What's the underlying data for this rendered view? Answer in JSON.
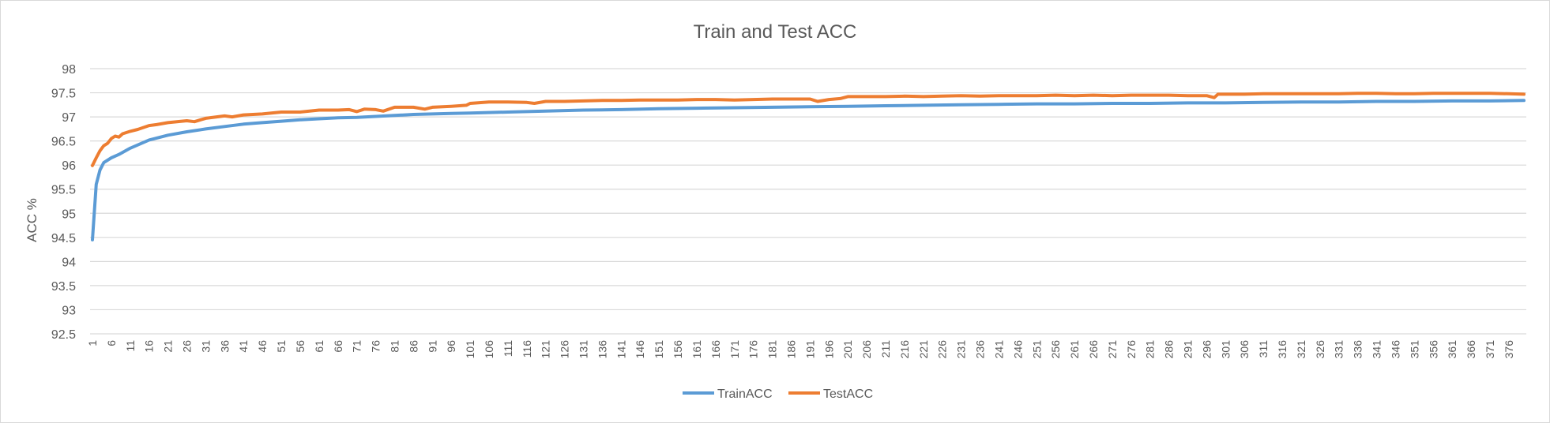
{
  "chart_data": {
    "type": "line",
    "title": "Train and Test ACC",
    "xlabel": "",
    "ylabel": "ACC %",
    "ylim": [
      92.5,
      98
    ],
    "yticks": [
      "92.5",
      "93",
      "93.5",
      "94",
      "94.5",
      "95",
      "95.5",
      "96",
      "96.5",
      "97",
      "97.5",
      "98"
    ],
    "xlim": [
      1,
      380
    ],
    "xticks": [
      "1",
      "6",
      "11",
      "16",
      "21",
      "26",
      "31",
      "36",
      "41",
      "46",
      "51",
      "56",
      "61",
      "66",
      "71",
      "76",
      "81",
      "86",
      "91",
      "96",
      "101",
      "106",
      "111",
      "116",
      "121",
      "126",
      "131",
      "136",
      "141",
      "146",
      "151",
      "156",
      "161",
      "166",
      "171",
      "176",
      "181",
      "186",
      "191",
      "196",
      "201",
      "206",
      "211",
      "216",
      "221",
      "226",
      "231",
      "236",
      "241",
      "246",
      "251",
      "256",
      "261",
      "266",
      "271",
      "276",
      "281",
      "286",
      "291",
      "296",
      "301",
      "306",
      "311",
      "316",
      "321",
      "326",
      "331",
      "336",
      "341",
      "346",
      "351",
      "356",
      "361",
      "366",
      "371",
      "376"
    ],
    "grid": true,
    "legend_position": "bottom",
    "series": [
      {
        "name": "TrainACC",
        "color": "#5b9bd5",
        "x": [
          1,
          2,
          3,
          4,
          6,
          8,
          11,
          16,
          21,
          26,
          31,
          36,
          41,
          46,
          51,
          56,
          61,
          66,
          71,
          76,
          81,
          86,
          91,
          96,
          101,
          111,
          121,
          131,
          141,
          151,
          161,
          171,
          181,
          191,
          201,
          211,
          221,
          231,
          241,
          251,
          261,
          271,
          281,
          291,
          301,
          311,
          321,
          331,
          341,
          351,
          361,
          371,
          380
        ],
        "values": [
          94.45,
          95.6,
          95.9,
          96.05,
          96.15,
          96.22,
          96.35,
          96.52,
          96.62,
          96.69,
          96.75,
          96.8,
          96.85,
          96.88,
          96.91,
          96.94,
          96.96,
          96.98,
          96.99,
          97.01,
          97.03,
          97.05,
          97.06,
          97.07,
          97.08,
          97.1,
          97.12,
          97.14,
          97.15,
          97.17,
          97.18,
          97.19,
          97.2,
          97.21,
          97.22,
          97.23,
          97.24,
          97.25,
          97.26,
          97.27,
          97.27,
          97.28,
          97.28,
          97.29,
          97.29,
          97.3,
          97.31,
          97.31,
          97.32,
          97.32,
          97.33,
          97.33,
          97.34
        ]
      },
      {
        "name": "TestACC",
        "color": "#ed7d31",
        "x": [
          1,
          2,
          3,
          4,
          5,
          6,
          7,
          8,
          9,
          11,
          13,
          16,
          18,
          21,
          26,
          28,
          31,
          36,
          38,
          41,
          46,
          51,
          56,
          61,
          66,
          69,
          71,
          73,
          76,
          78,
          81,
          86,
          89,
          91,
          96,
          100,
          101,
          106,
          111,
          116,
          118,
          121,
          126,
          131,
          136,
          141,
          146,
          151,
          156,
          161,
          166,
          171,
          176,
          181,
          186,
          191,
          193,
          196,
          199,
          201,
          206,
          211,
          216,
          221,
          226,
          231,
          236,
          241,
          246,
          251,
          256,
          261,
          266,
          271,
          276,
          281,
          286,
          291,
          296,
          298,
          299,
          301,
          306,
          311,
          316,
          321,
          326,
          331,
          336,
          341,
          346,
          351,
          356,
          361,
          366,
          371,
          376,
          380
        ],
        "values": [
          95.99,
          96.15,
          96.3,
          96.4,
          96.45,
          96.55,
          96.6,
          96.58,
          96.65,
          96.7,
          96.74,
          96.82,
          96.84,
          96.88,
          96.92,
          96.9,
          96.97,
          97.02,
          97.0,
          97.04,
          97.06,
          97.1,
          97.1,
          97.14,
          97.14,
          97.15,
          97.11,
          97.16,
          97.15,
          97.12,
          97.2,
          97.2,
          97.16,
          97.2,
          97.22,
          97.24,
          97.28,
          97.31,
          97.31,
          97.3,
          97.28,
          97.32,
          97.32,
          97.33,
          97.34,
          97.34,
          97.35,
          97.35,
          97.35,
          97.36,
          97.36,
          97.35,
          97.36,
          97.37,
          97.37,
          97.37,
          97.32,
          97.36,
          97.38,
          97.42,
          97.42,
          97.42,
          97.43,
          97.42,
          97.43,
          97.44,
          97.43,
          97.44,
          97.44,
          97.44,
          97.45,
          97.44,
          97.45,
          97.44,
          97.45,
          97.45,
          97.45,
          97.44,
          97.44,
          97.4,
          97.47,
          97.47,
          97.47,
          97.48,
          97.48,
          97.48,
          97.48,
          97.48,
          97.49,
          97.49,
          97.48,
          97.48,
          97.49,
          97.49,
          97.49,
          97.49,
          97.48,
          97.47
        ]
      }
    ]
  }
}
